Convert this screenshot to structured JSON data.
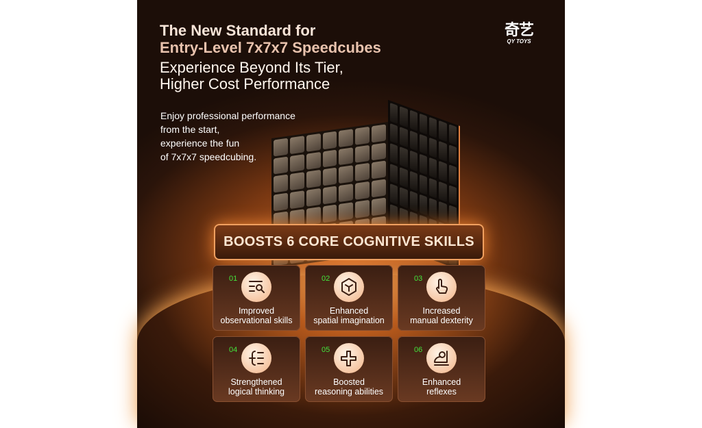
{
  "headline": {
    "line1": "The New Standard for",
    "line2": "Entry-Level 7x7x7 Speedcubes",
    "line3": "Experience Beyond Its Tier,",
    "line4": "Higher Cost Performance"
  },
  "subtext": "Enjoy professional performance\nfrom the start,\nexperience the fun\nof 7x7x7 speedcubing.",
  "logo": {
    "cn": "奇艺",
    "en": "QY TOYS"
  },
  "banner": "BOOSTS 6 CORE COGNITIVE SKILLS",
  "skills": [
    {
      "num": "01",
      "line1": "Improved",
      "line2": "observational skills",
      "icon": "search-list-icon"
    },
    {
      "num": "02",
      "line1": "Enhanced",
      "line2": "spatial imagination",
      "icon": "cube-icon"
    },
    {
      "num": "03",
      "line1": "Increased",
      "line2": "manual dexterity",
      "icon": "hand-pointer-icon"
    },
    {
      "num": "04",
      "line1": "Strengthened",
      "line2": "logical thinking",
      "icon": "logic-list-icon"
    },
    {
      "num": "05",
      "line1": "Boosted",
      "line2": "reasoning abilities",
      "icon": "puzzle-knot-icon"
    },
    {
      "num": "06",
      "line1": "Enhanced",
      "line2": "reflexes",
      "icon": "person-reflex-icon"
    }
  ],
  "colors": {
    "number": "#43e33c",
    "accent": "#f0a060"
  }
}
